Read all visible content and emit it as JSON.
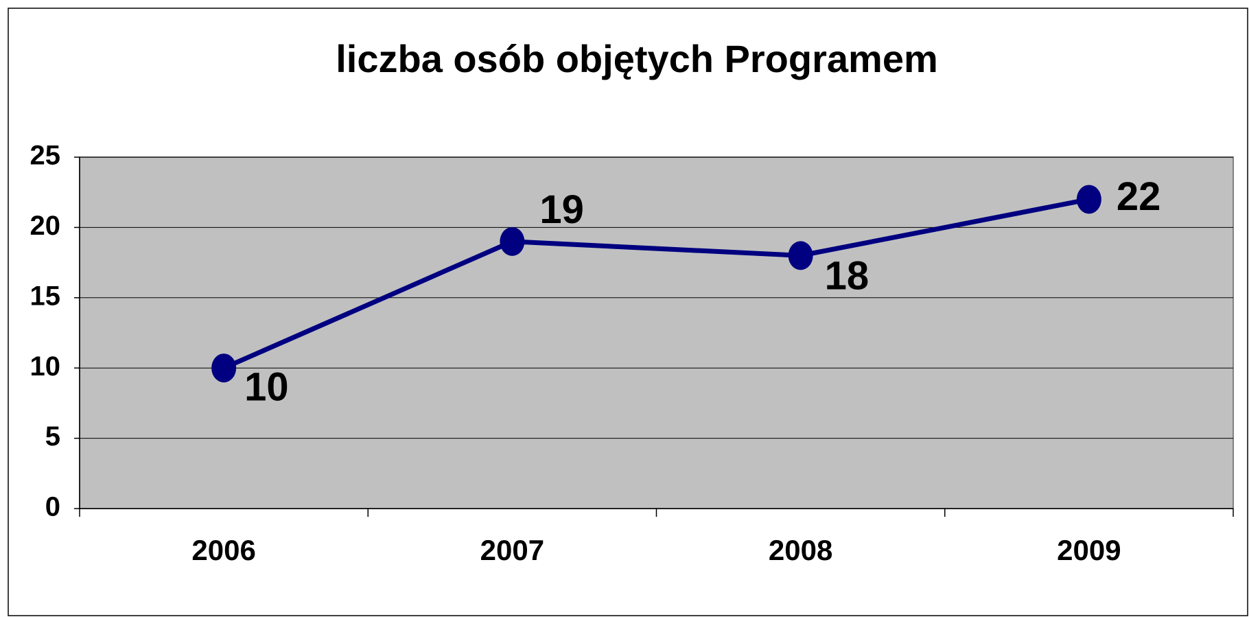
{
  "chart_data": {
    "type": "line",
    "title": "liczba osób objętych Programem",
    "categories": [
      "2006",
      "2007",
      "2008",
      "2009"
    ],
    "values": [
      10,
      19,
      18,
      22
    ],
    "color": "#000080",
    "ylim": [
      0,
      25
    ],
    "yticks": [
      0,
      5,
      10,
      15,
      20,
      25
    ],
    "grid": true
  }
}
